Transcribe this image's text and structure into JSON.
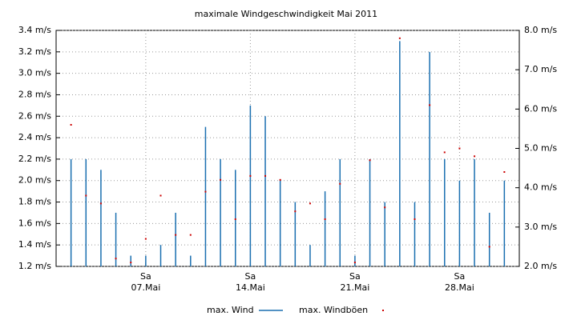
{
  "chart_data": {
    "type": "bar-dot",
    "title": "maximale Windgeschwindigkeit Mai 2011",
    "x": [
      2,
      3,
      4,
      5,
      6,
      7,
      8,
      9,
      10,
      11,
      12,
      13,
      14,
      15,
      16,
      17,
      18,
      19,
      20,
      21,
      22,
      23,
      24,
      25,
      26,
      27,
      28,
      29,
      30,
      31
    ],
    "xlim": [
      1,
      32
    ],
    "xticks": [
      {
        "value": 7,
        "label": [
          "Sa",
          "07.Mai"
        ]
      },
      {
        "value": 14,
        "label": [
          "Sa",
          "14.Mai"
        ]
      },
      {
        "value": 21,
        "label": [
          "Sa",
          "21.Mai"
        ]
      },
      {
        "value": 28,
        "label": [
          "Sa",
          "28.Mai"
        ]
      }
    ],
    "ylim": [
      1.2,
      3.4
    ],
    "yticks": [
      {
        "value": 1.2,
        "label": "1.2 m/s"
      },
      {
        "value": 1.4,
        "label": "1.4 m/s"
      },
      {
        "value": 1.6,
        "label": "1.6 m/s"
      },
      {
        "value": 1.8,
        "label": "1.8 m/s"
      },
      {
        "value": 2.0,
        "label": "2.0 m/s"
      },
      {
        "value": 2.2,
        "label": "2.2 m/s"
      },
      {
        "value": 2.4,
        "label": "2.4 m/s"
      },
      {
        "value": 2.6,
        "label": "2.6 m/s"
      },
      {
        "value": 2.8,
        "label": "2.8 m/s"
      },
      {
        "value": 3.0,
        "label": "3.0 m/s"
      },
      {
        "value": 3.2,
        "label": "3.2 m/s"
      },
      {
        "value": 3.4,
        "label": "3.4 m/s"
      }
    ],
    "y2lim": [
      2.0,
      8.0
    ],
    "y2ticks": [
      {
        "value": 2.0,
        "label": "2.0 m/s"
      },
      {
        "value": 3.0,
        "label": "3.0 m/s"
      },
      {
        "value": 4.0,
        "label": "4.0 m/s"
      },
      {
        "value": 5.0,
        "label": "5.0 m/s"
      },
      {
        "value": 6.0,
        "label": "6.0 m/s"
      },
      {
        "value": 7.0,
        "label": "7.0 m/s"
      },
      {
        "value": 8.0,
        "label": "8.0 m/s"
      }
    ],
    "grid": true,
    "series": [
      {
        "name": "max. Wind",
        "color": "#1a6fb0",
        "mark": "bar",
        "values": [
          2.2,
          2.2,
          2.1,
          1.7,
          1.3,
          1.3,
          1.4,
          1.7,
          1.3,
          2.5,
          2.2,
          2.1,
          2.7,
          2.6,
          2.0,
          1.8,
          1.4,
          1.9,
          2.2,
          1.3,
          2.2,
          1.8,
          3.3,
          1.8,
          3.2,
          2.2,
          2.0,
          2.2,
          1.7,
          2.0
        ]
      },
      {
        "name": "max. Windböen",
        "color": "#cc0000",
        "mark": "dot",
        "axis": "y2",
        "values": [
          5.6,
          3.8,
          3.6,
          2.2,
          2.1,
          2.7,
          3.8,
          2.8,
          2.8,
          3.9,
          4.2,
          3.2,
          4.3,
          4.3,
          4.2,
          3.4,
          3.6,
          3.2,
          4.1,
          2.1,
          4.7,
          3.5,
          7.8,
          3.2,
          6.1,
          4.9,
          5.0,
          4.8,
          2.5,
          4.4
        ]
      }
    ]
  }
}
